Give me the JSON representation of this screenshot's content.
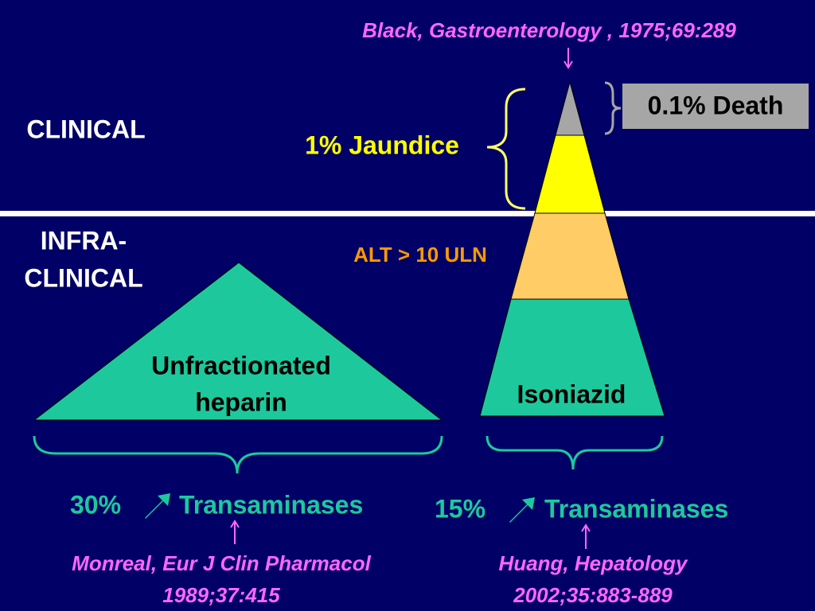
{
  "citations": {
    "top": "Black, Gastroenterology , 1975;69:289",
    "left": [
      "Monreal, Eur J Clin Pharmacol",
      "1989;37:415"
    ],
    "right": [
      "Huang, Hepatology",
      "2002;35:883-889"
    ]
  },
  "zones": {
    "clinical": "CLINICAL",
    "infra": [
      "INFRA-",
      "CLINICAL"
    ]
  },
  "pyramid": {
    "death": "0.1% Death",
    "jaundice": "1% Jaundice",
    "alt": "ALT > 10 ULN",
    "drug": "Isoniazid"
  },
  "heparin": {
    "label": [
      "Unfractionated",
      "heparin"
    ]
  },
  "results": {
    "left": {
      "percent": "30%",
      "text": "Transaminases"
    },
    "right": {
      "percent": "15%",
      "text": "Transaminases"
    }
  }
}
